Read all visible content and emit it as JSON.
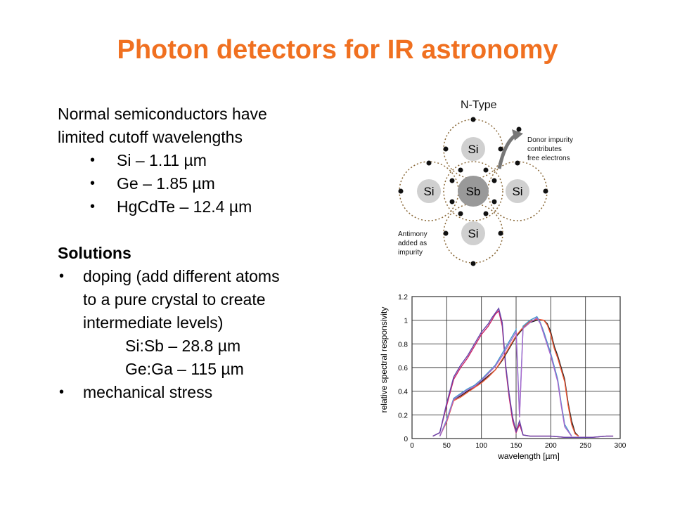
{
  "slide": {
    "title": "Photon detectors for IR astronomy",
    "intro_line1": "Normal semiconductors have",
    "intro_line2": "limited cutoff wavelengths",
    "cutoffs": [
      "Si – 1.11 µm",
      "Ge – 1.85 µm",
      "HgCdTe – 12.4 µm"
    ],
    "solutions_heading": "Solutions",
    "doping_lines": [
      "doping (add different atoms",
      "to a pure crystal to create",
      "intermediate levels)"
    ],
    "doping_examples": [
      "Si:Sb – 28.8 µm",
      "Ge:Ga – 115 µm"
    ],
    "stress": "mechanical stress"
  },
  "ntype_diagram": {
    "title": "N-Type",
    "center_atom": "Sb",
    "outer_atoms": [
      "Si",
      "Si",
      "Si",
      "Si"
    ],
    "donor_note": [
      "Donor impurity",
      "contributes",
      "free electrons"
    ],
    "antimony_note": [
      "Antimony",
      "added as",
      "impurity"
    ],
    "colors": {
      "atom": "#d0d0d0",
      "center_atom": "#999999",
      "electron": "#111111",
      "orbit": "#8b6a3a"
    }
  },
  "chart_data": {
    "type": "line",
    "xlabel": "wavelength [µm]",
    "ylabel": "relative spectral responsivity",
    "xlim": [
      0,
      300
    ],
    "ylim": [
      0,
      1.2
    ],
    "x_ticks": [
      0,
      50,
      100,
      150,
      200,
      250,
      300
    ],
    "y_ticks": [
      0,
      0.2,
      0.4,
      0.6,
      0.8,
      1,
      1.2
    ],
    "grid": true,
    "series": [
      {
        "color": "#cc2266",
        "x": [
          30,
          40,
          50,
          60,
          70,
          80,
          90,
          100,
          110,
          115,
          120,
          125,
          130,
          135,
          140,
          145,
          150,
          155,
          160,
          170,
          180,
          200,
          220,
          240,
          260,
          280,
          290
        ],
        "y": [
          0.02,
          0.05,
          0.28,
          0.5,
          0.6,
          0.68,
          0.78,
          0.88,
          0.95,
          1.0,
          1.05,
          1.08,
          0.95,
          0.6,
          0.35,
          0.15,
          0.05,
          0.12,
          0.03,
          0.02,
          0.02,
          0.02,
          0.01,
          0.01,
          0.01,
          0.02,
          0.02
        ]
      },
      {
        "color": "#6644aa",
        "x": [
          30,
          40,
          50,
          60,
          70,
          80,
          90,
          100,
          110,
          115,
          120,
          125,
          130,
          135,
          140,
          145,
          150,
          155,
          160,
          170,
          180,
          200,
          220,
          240,
          260,
          280,
          290
        ],
        "y": [
          0.02,
          0.05,
          0.3,
          0.52,
          0.62,
          0.7,
          0.8,
          0.9,
          0.97,
          1.02,
          1.06,
          1.1,
          0.98,
          0.62,
          0.38,
          0.18,
          0.06,
          0.15,
          0.03,
          0.02,
          0.02,
          0.02,
          0.01,
          0.01,
          0.01,
          0.02,
          0.02
        ]
      },
      {
        "color": "#222222",
        "x": [
          40,
          50,
          60,
          70,
          80,
          90,
          100,
          110,
          120,
          130,
          140,
          150,
          160,
          170,
          180,
          190,
          195,
          200,
          205,
          210,
          220,
          225,
          230,
          235,
          240
        ],
        "y": [
          0.02,
          0.15,
          0.33,
          0.36,
          0.4,
          0.44,
          0.48,
          0.53,
          0.58,
          0.66,
          0.76,
          0.86,
          0.93,
          0.98,
          1.0,
          1.0,
          0.97,
          0.9,
          0.78,
          0.7,
          0.5,
          0.3,
          0.15,
          0.05,
          0.02
        ]
      },
      {
        "color": "#ee5533",
        "x": [
          40,
          50,
          60,
          70,
          80,
          90,
          100,
          110,
          120,
          130,
          140,
          150,
          160,
          170,
          180,
          190,
          195,
          200,
          205,
          210,
          220,
          225,
          230,
          235,
          240
        ],
        "y": [
          0.02,
          0.14,
          0.32,
          0.35,
          0.39,
          0.43,
          0.47,
          0.52,
          0.58,
          0.67,
          0.77,
          0.87,
          0.94,
          0.99,
          1.01,
          1.0,
          0.96,
          0.88,
          0.76,
          0.68,
          0.48,
          0.28,
          0.12,
          0.04,
          0.02
        ]
      },
      {
        "color": "#4499cc",
        "x": [
          40,
          50,
          60,
          70,
          80,
          90,
          100,
          110,
          120,
          130,
          140,
          150,
          155,
          160,
          170,
          180,
          185,
          190,
          200,
          210,
          215,
          220,
          230
        ],
        "y": [
          0.02,
          0.16,
          0.34,
          0.38,
          0.42,
          0.45,
          0.5,
          0.56,
          0.62,
          0.72,
          0.82,
          0.92,
          0.2,
          0.95,
          1.0,
          1.03,
          0.98,
          0.9,
          0.72,
          0.5,
          0.3,
          0.12,
          0.02
        ]
      },
      {
        "color": "#aa66cc",
        "x": [
          40,
          50,
          60,
          70,
          80,
          90,
          100,
          110,
          120,
          130,
          140,
          150,
          155,
          160,
          170,
          180,
          185,
          190,
          200,
          210,
          215,
          220,
          230
        ],
        "y": [
          0.02,
          0.15,
          0.33,
          0.37,
          0.41,
          0.44,
          0.49,
          0.55,
          0.61,
          0.7,
          0.8,
          0.9,
          0.18,
          0.93,
          0.98,
          1.02,
          0.97,
          0.88,
          0.7,
          0.48,
          0.28,
          0.1,
          0.02
        ]
      }
    ]
  }
}
